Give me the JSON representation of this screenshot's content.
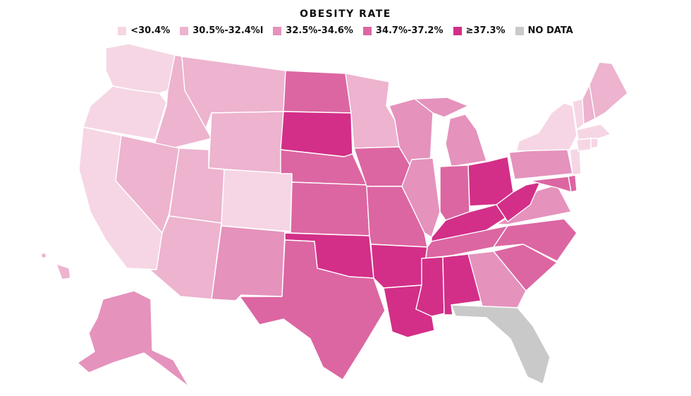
{
  "title": "OBESITY RATE",
  "legend": [
    {
      "label": "<30.4%",
      "color": "#f6d6e4"
    },
    {
      "label": "30.5%-32.4%l",
      "color": "#edb3cf"
    },
    {
      "label": "32.5%-34.6%",
      "color": "#e592bd"
    },
    {
      "label": "34.7%-37.2%",
      "color": "#dc66a2"
    },
    {
      "label": "≥37.3%",
      "color": "#d32f88"
    },
    {
      "label": "NO DATA",
      "color": "#c9c9c9"
    }
  ]
}
